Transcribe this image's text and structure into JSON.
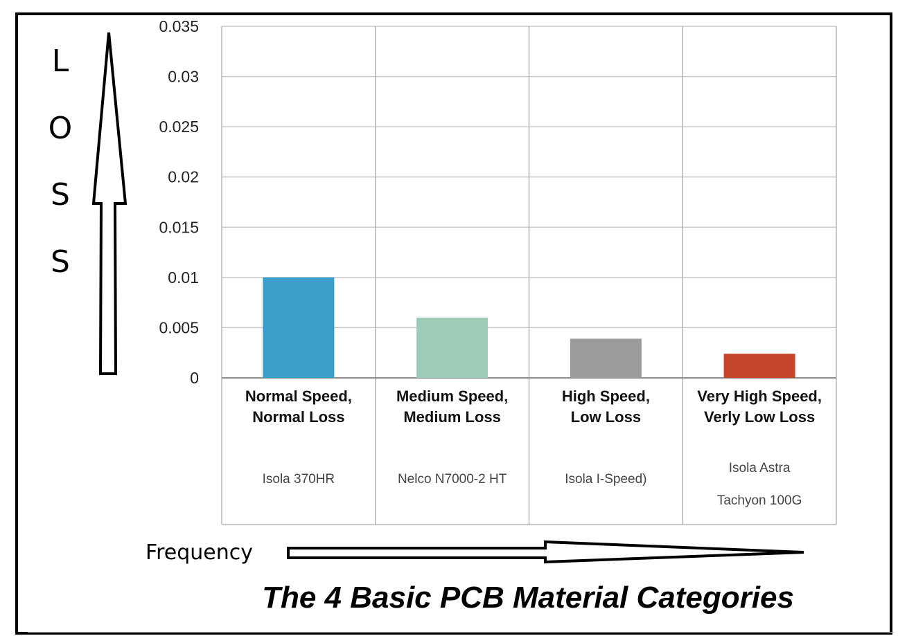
{
  "chart_data": {
    "type": "bar",
    "title": "The 4 Basic PCB Material Categories",
    "ylabel": "LOSS",
    "xlabel": "Frequency",
    "ylim": [
      0,
      0.035
    ],
    "yticks": [
      "0",
      "0.005",
      "0.01",
      "0.015",
      "0.02",
      "0.025",
      "0.03",
      "0.035"
    ],
    "ytick_values": [
      0,
      0.005,
      0.01,
      0.015,
      0.02,
      0.025,
      0.03,
      0.035
    ],
    "grid": true,
    "categories": [
      {
        "line1": "Normal Speed,",
        "line2": "Normal Loss",
        "materials": [
          "Isola 370HR"
        ],
        "color": "#3b9dca"
      },
      {
        "line1": "Medium Speed,",
        "line2": "Medium Loss",
        "materials": [
          "Nelco N7000-2 HT"
        ],
        "color": "#9ccbb8"
      },
      {
        "line1": "High Speed,",
        "line2": "Low Loss",
        "materials": [
          "Isola I-Speed)"
        ],
        "color": "#9b9b9b"
      },
      {
        "line1": "Very High Speed,",
        "line2": "Verly Low Loss",
        "materials": [
          "Isola Astra",
          "Tachyon 100G"
        ],
        "color": "#c5452a"
      }
    ],
    "values": [
      0.01,
      0.006,
      0.0039,
      0.0024
    ]
  },
  "loss_letters": [
    "L",
    "O",
    "S",
    "S"
  ]
}
